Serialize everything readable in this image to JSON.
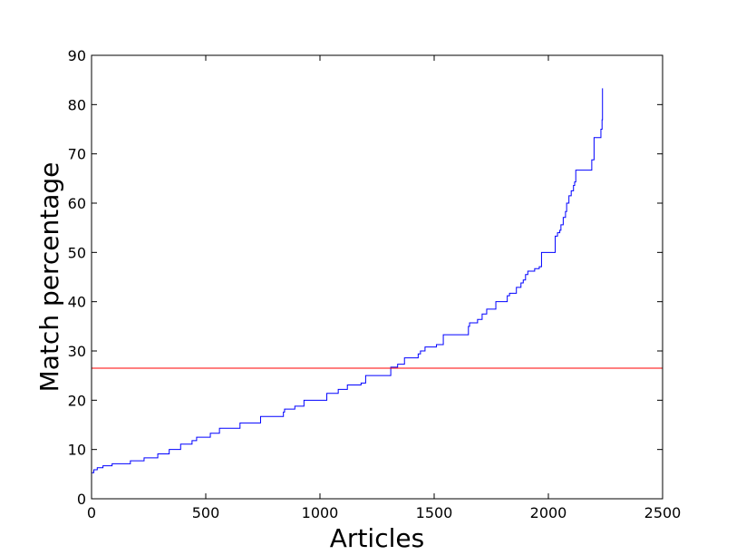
{
  "chart_data": {
    "type": "line",
    "title": "",
    "xlabel": "Articles",
    "ylabel": "Match percentage",
    "xlim": [
      0,
      2500
    ],
    "ylim": [
      0,
      90
    ],
    "xticks": [
      0,
      500,
      1000,
      1500,
      2000,
      2500
    ],
    "yticks": [
      0,
      10,
      20,
      30,
      40,
      50,
      60,
      70,
      80,
      90
    ],
    "grid": false,
    "legend": "none",
    "series": [
      {
        "color": "#0000ff",
        "step": true,
        "points": [
          [
            0,
            5.3
          ],
          [
            10,
            5.9
          ],
          [
            25,
            6.3
          ],
          [
            50,
            6.7
          ],
          [
            90,
            7.1
          ],
          [
            170,
            7.7
          ],
          [
            230,
            8.3
          ],
          [
            290,
            9.1
          ],
          [
            340,
            10.0
          ],
          [
            390,
            11.1
          ],
          [
            440,
            11.8
          ],
          [
            460,
            12.5
          ],
          [
            520,
            13.3
          ],
          [
            560,
            14.3
          ],
          [
            650,
            15.4
          ],
          [
            740,
            16.7
          ],
          [
            840,
            17.6
          ],
          [
            845,
            18.2
          ],
          [
            890,
            18.8
          ],
          [
            930,
            20.0
          ],
          [
            1030,
            21.4
          ],
          [
            1080,
            22.2
          ],
          [
            1120,
            23.1
          ],
          [
            1180,
            23.5
          ],
          [
            1200,
            25.0
          ],
          [
            1310,
            26.7
          ],
          [
            1340,
            27.3
          ],
          [
            1370,
            28.6
          ],
          [
            1430,
            29.4
          ],
          [
            1440,
            30.0
          ],
          [
            1460,
            30.8
          ],
          [
            1510,
            31.3
          ],
          [
            1540,
            33.3
          ],
          [
            1650,
            35.0
          ],
          [
            1655,
            35.7
          ],
          [
            1690,
            36.4
          ],
          [
            1710,
            37.5
          ],
          [
            1730,
            38.5
          ],
          [
            1770,
            40.0
          ],
          [
            1820,
            41.2
          ],
          [
            1830,
            41.7
          ],
          [
            1860,
            42.9
          ],
          [
            1880,
            43.8
          ],
          [
            1890,
            44.4
          ],
          [
            1900,
            45.5
          ],
          [
            1910,
            46.2
          ],
          [
            1940,
            46.7
          ],
          [
            1960,
            47.1
          ],
          [
            1970,
            50.0
          ],
          [
            2030,
            53.3
          ],
          [
            2040,
            54.0
          ],
          [
            2050,
            54.5
          ],
          [
            2055,
            55.6
          ],
          [
            2065,
            57.1
          ],
          [
            2075,
            58.3
          ],
          [
            2080,
            60.0
          ],
          [
            2090,
            61.5
          ],
          [
            2100,
            62.5
          ],
          [
            2110,
            63.6
          ],
          [
            2115,
            64.3
          ],
          [
            2120,
            66.7
          ],
          [
            2190,
            68.8
          ],
          [
            2200,
            73.3
          ],
          [
            2230,
            75.0
          ],
          [
            2235,
            76.9
          ],
          [
            2237,
            83.3
          ]
        ]
      }
    ],
    "hlines": [
      {
        "y": 26.5,
        "color": "#ff0000"
      }
    ]
  }
}
